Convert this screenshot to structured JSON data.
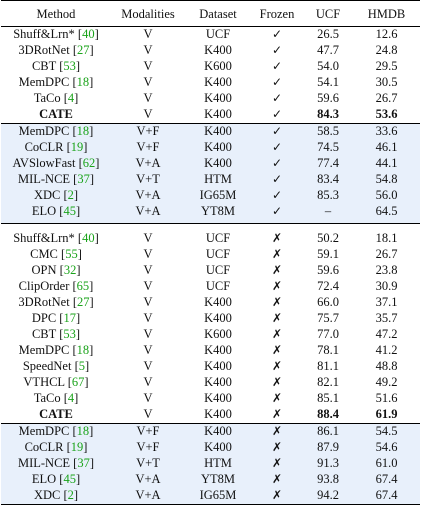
{
  "header": {
    "method": "Method",
    "modalities": "Modalities",
    "dataset": "Dataset",
    "frozen": "Frozen",
    "ucf": "UCF",
    "hmdb": "HMDB"
  },
  "frozen_section": [
    {
      "name": "Shuff&Lrn*",
      "cite": "40",
      "mod": "V",
      "data": "UCF",
      "frozen": "✓",
      "ucf": "26.5",
      "hmdb": "12.6"
    },
    {
      "name": "3DRotNet",
      "cite": "27",
      "mod": "V",
      "data": "K400",
      "frozen": "✓",
      "ucf": "47.7",
      "hmdb": "24.8"
    },
    {
      "name": "CBT",
      "cite": "53",
      "mod": "V",
      "data": "K600",
      "frozen": "✓",
      "ucf": "54.0",
      "hmdb": "29.5"
    },
    {
      "name": "MemDPC",
      "cite": "18",
      "mod": "V",
      "data": "K400",
      "frozen": "✓",
      "ucf": "54.1",
      "hmdb": "30.5"
    },
    {
      "name": "TaCo",
      "cite": "4",
      "mod": "V",
      "data": "K400",
      "frozen": "✓",
      "ucf": "59.6",
      "hmdb": "26.7"
    },
    {
      "name": "CATE",
      "cite": "",
      "mod": "V",
      "data": "K400",
      "frozen": "✓",
      "ucf": "84.3",
      "hmdb": "53.6"
    },
    {
      "name": "MemDPC",
      "cite": "18",
      "mod": "V+F",
      "data": "K400",
      "frozen": "✓",
      "ucf": "58.5",
      "hmdb": "33.6"
    },
    {
      "name": "CoCLR",
      "cite": "19",
      "mod": "V+F",
      "data": "K400",
      "frozen": "✓",
      "ucf": "74.5",
      "hmdb": "46.1"
    },
    {
      "name": "AVSlowFast",
      "cite": "62",
      "mod": "V+A",
      "data": "K400",
      "frozen": "✓",
      "ucf": "77.4",
      "hmdb": "44.1"
    },
    {
      "name": "MIL-NCE",
      "cite": "37",
      "mod": "V+T",
      "data": "HTM",
      "frozen": "✓",
      "ucf": "83.4",
      "hmdb": "54.8"
    },
    {
      "name": "XDC",
      "cite": "2",
      "mod": "V+A",
      "data": "IG65M",
      "frozen": "✓",
      "ucf": "85.3",
      "hmdb": "56.0"
    },
    {
      "name": "ELO",
      "cite": "45",
      "mod": "V+A",
      "data": "YT8M",
      "frozen": "✓",
      "ucf": "–",
      "hmdb": "64.5"
    }
  ],
  "finetune_section": [
    {
      "name": "Shuff&Lrn*",
      "cite": "40",
      "mod": "V",
      "data": "UCF",
      "frozen": "✗",
      "ucf": "50.2",
      "hmdb": "18.1"
    },
    {
      "name": "CMC",
      "cite": "55",
      "mod": "V",
      "data": "UCF",
      "frozen": "✗",
      "ucf": "59.1",
      "hmdb": "26.7"
    },
    {
      "name": "OPN",
      "cite": "32",
      "mod": "V",
      "data": "UCF",
      "frozen": "✗",
      "ucf": "59.6",
      "hmdb": "23.8"
    },
    {
      "name": "ClipOrder",
      "cite": "65",
      "mod": "V",
      "data": "UCF",
      "frozen": "✗",
      "ucf": "72.4",
      "hmdb": "30.9"
    },
    {
      "name": "3DRotNet",
      "cite": "27",
      "mod": "V",
      "data": "K400",
      "frozen": "✗",
      "ucf": "66.0",
      "hmdb": "37.1"
    },
    {
      "name": "DPC",
      "cite": "17",
      "mod": "V",
      "data": "K400",
      "frozen": "✗",
      "ucf": "75.7",
      "hmdb": "35.7"
    },
    {
      "name": "CBT",
      "cite": "53",
      "mod": "V",
      "data": "K600",
      "frozen": "✗",
      "ucf": "77.0",
      "hmdb": "47.2"
    },
    {
      "name": "MemDPC",
      "cite": "18",
      "mod": "V",
      "data": "K400",
      "frozen": "✗",
      "ucf": "78.1",
      "hmdb": "41.2"
    },
    {
      "name": "SpeedNet",
      "cite": "5",
      "mod": "V",
      "data": "K400",
      "frozen": "✗",
      "ucf": "81.1",
      "hmdb": "48.8"
    },
    {
      "name": "VTHCL",
      "cite": "67",
      "mod": "V",
      "data": "K400",
      "frozen": "✗",
      "ucf": "82.1",
      "hmdb": "49.2"
    },
    {
      "name": "TaCo",
      "cite": "4",
      "mod": "V",
      "data": "K400",
      "frozen": "✗",
      "ucf": "85.1",
      "hmdb": "51.6"
    },
    {
      "name": "CATE",
      "cite": "",
      "mod": "V",
      "data": "K400",
      "frozen": "✗",
      "ucf": "88.4",
      "hmdb": "61.9"
    },
    {
      "name": "MemDPC",
      "cite": "18",
      "mod": "V+F",
      "data": "K400",
      "frozen": "✗",
      "ucf": "86.1",
      "hmdb": "54.5"
    },
    {
      "name": "CoCLR",
      "cite": "19",
      "mod": "V+F",
      "data": "K400",
      "frozen": "✗",
      "ucf": "87.9",
      "hmdb": "54.6"
    },
    {
      "name": "MIL-NCE",
      "cite": "37",
      "mod": "V+T",
      "data": "HTM",
      "frozen": "✗",
      "ucf": "91.3",
      "hmdb": "61.0"
    },
    {
      "name": "ELO",
      "cite": "45",
      "mod": "V+A",
      "data": "YT8M",
      "frozen": "✗",
      "ucf": "93.8",
      "hmdb": "67.4"
    },
    {
      "name": "XDC",
      "cite": "2",
      "mod": "V+A",
      "data": "IG65M",
      "frozen": "✗",
      "ucf": "94.2",
      "hmdb": "67.4"
    }
  ],
  "colors": {
    "shade": "#e8f0fb",
    "cite": "#1aa31a"
  }
}
